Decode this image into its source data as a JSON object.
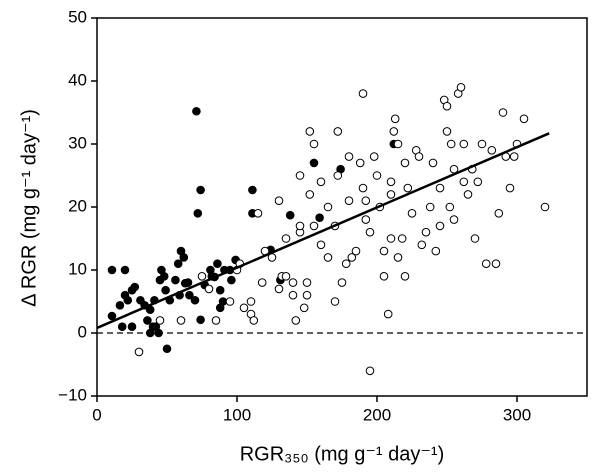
{
  "chart_data": {
    "type": "scatter",
    "xlabel": "RGR₃₅₀ (mg g⁻¹ day⁻¹)",
    "ylabel": "Δ RGR (mg g⁻¹ day⁻¹)",
    "xlim": [
      0,
      350
    ],
    "ylim": [
      -10,
      50
    ],
    "xticks": [
      0,
      100,
      200,
      300
    ],
    "yticks": [
      {
        "value": -10,
        "label": "−10"
      },
      0,
      10,
      20,
      30,
      40,
      50
    ],
    "reference_line": 0,
    "fit_line": {
      "x": [
        0,
        323
      ],
      "y": [
        0.8,
        31.7
      ],
      "color": "#000000"
    },
    "series": [
      {
        "marker": "filled",
        "color": "#000000",
        "x": [
          10.7,
          16.4,
          20,
          25,
          10.7,
          20,
          22,
          27,
          31,
          34,
          38,
          41,
          45,
          46,
          49,
          52,
          56,
          59,
          63,
          66,
          70,
          74,
          77,
          81,
          84,
          88,
          91,
          95,
          96,
          99,
          72,
          74,
          71,
          111,
          111,
          124,
          131,
          138,
          159,
          155,
          174,
          212,
          38,
          40,
          44,
          50,
          42,
          36,
          18,
          25,
          60,
          62,
          58,
          48,
          65,
          88,
          90,
          86,
          82
        ],
        "y": [
          2.7,
          4.4,
          6,
          6.8,
          10,
          10,
          5.2,
          7.3,
          5.2,
          4.4,
          3.7,
          5.2,
          8.4,
          10,
          6.8,
          5.2,
          8.4,
          6,
          7.9,
          6,
          5.2,
          2.1,
          7.6,
          10,
          8.9,
          6.8,
          10,
          10,
          8.4,
          11.6,
          19,
          22.7,
          35.2,
          19,
          22.7,
          13.2,
          8.4,
          18.7,
          18.3,
          27,
          26,
          30,
          0,
          1,
          0,
          -2.5,
          1,
          2,
          1,
          1,
          13,
          12,
          11,
          9,
          8,
          4,
          5,
          11,
          9
        ]
      },
      {
        "marker": "open",
        "color": "#000000",
        "x": [
          30,
          45,
          60,
          75,
          80,
          85,
          95,
          100,
          102,
          105,
          110,
          110,
          112,
          115,
          118,
          120,
          125,
          130,
          130,
          132,
          135,
          135,
          140,
          140,
          142,
          145,
          145,
          148,
          150,
          150,
          152,
          152,
          155,
          160,
          160,
          165,
          170,
          170,
          172,
          172,
          175,
          178,
          180,
          180,
          182,
          185,
          188,
          190,
          190,
          192,
          192,
          195,
          195,
          198,
          200,
          202,
          205,
          205,
          208,
          210,
          210,
          210,
          212,
          213,
          215,
          215,
          218,
          220,
          220,
          222,
          225,
          228,
          230,
          232,
          235,
          238,
          240,
          242,
          245,
          245,
          248,
          250,
          250,
          252,
          253,
          255,
          255,
          258,
          260,
          262,
          262,
          265,
          268,
          270,
          272,
          275,
          278,
          282,
          285,
          287,
          290,
          292,
          295,
          298,
          300,
          305,
          320,
          155,
          145,
          165
        ],
        "y": [
          -3,
          2,
          2,
          9,
          7,
          2,
          5,
          10,
          11,
          4,
          3,
          5,
          2,
          19,
          8,
          13,
          12,
          7,
          21,
          9,
          15,
          9,
          6,
          8,
          2,
          16,
          25,
          4,
          6,
          8,
          22,
          32,
          17,
          14,
          24,
          20,
          5,
          17,
          25,
          32,
          8,
          11,
          21,
          28,
          12,
          13,
          27,
          38,
          23,
          21,
          18,
          16,
          -6,
          28,
          25,
          20,
          13,
          9,
          3,
          15,
          24,
          22,
          32,
          34,
          12,
          30,
          15,
          9,
          27,
          23,
          19,
          29,
          28,
          14,
          16,
          20,
          27,
          13,
          17,
          23,
          37,
          36,
          32,
          20,
          30,
          18,
          26,
          38,
          39,
          24,
          30,
          22,
          26,
          15,
          24,
          30,
          11,
          29,
          11,
          19,
          35,
          28,
          23,
          28,
          30,
          34,
          20,
          30,
          17,
          12
        ]
      }
    ]
  }
}
